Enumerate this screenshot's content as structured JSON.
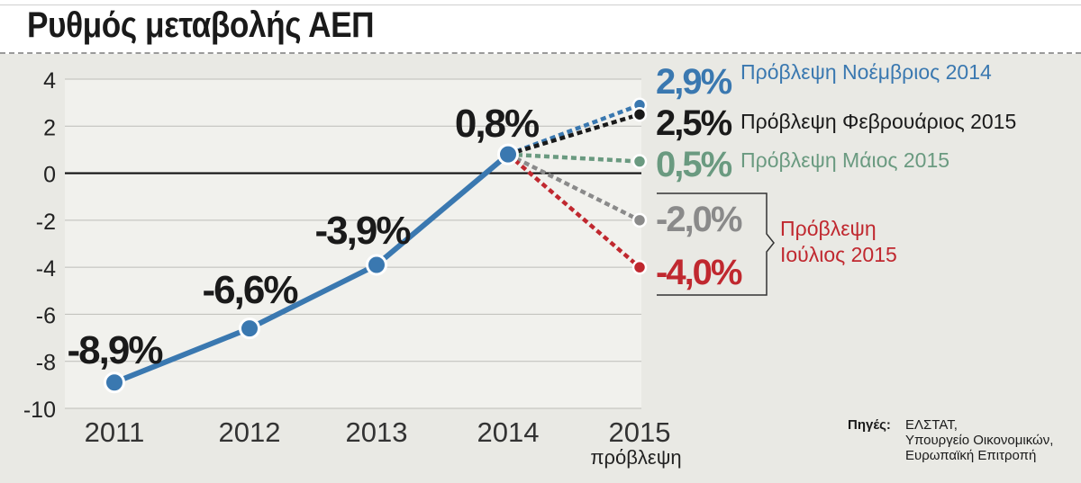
{
  "title": "Ρυθμός μεταβολής ΑΕΠ",
  "chart_data": {
    "type": "line",
    "title": "Ρυθμός μεταβολής ΑΕΠ",
    "xlabel": "",
    "ylabel": "",
    "x": [
      "2011",
      "2012",
      "2013",
      "2014",
      "2015"
    ],
    "x_sublabels": [
      "",
      "",
      "",
      "",
      "πρόβλεψη"
    ],
    "ylim": [
      -10,
      4
    ],
    "yticks": [
      4,
      2,
      0,
      -2,
      -4,
      -6,
      -8,
      -10
    ],
    "grid": true,
    "series": [
      {
        "x": [
          "2011",
          "2012",
          "2013",
          "2014"
        ],
        "values": [
          -8.9,
          -6.6,
          -3.9,
          0.8
        ],
        "labels": [
          "-8,9%",
          "-6,6%",
          "-3,9%",
          "0,8%"
        ],
        "color": "#3a78b0",
        "style": "solid"
      }
    ],
    "forecasts": [
      {
        "name": "Πρόβλεψη Νοέμβριος 2014",
        "value": 2.9,
        "label": "2,9%",
        "color": "#3a78b0"
      },
      {
        "name": "Πρόβλεψη Φεβρουάριος 2015",
        "value": 2.5,
        "label": "2,5%",
        "color": "#1a1a1a"
      },
      {
        "name": "Πρόβλεψη Μάιος 2015",
        "value": 0.5,
        "label": "0,5%",
        "color": "#6a9a80"
      },
      {
        "name": "",
        "value": -2.0,
        "label": "-2,0%",
        "color": "#8a8a8a"
      },
      {
        "name": "",
        "value": -4.0,
        "label": "-4,0%",
        "color": "#c0282f"
      }
    ],
    "bracket_label_line1": "Πρόβλεψη",
    "bracket_label_line2": "Ιούλιος 2015",
    "bracket_color": "#c0282f",
    "sources_title": "Πηγές:",
    "sources": [
      "ΕΛΣΤΑΤ,",
      "Υπουργείο Οικονομικών,",
      "Ευρωπαϊκή Επιτροπή"
    ]
  }
}
